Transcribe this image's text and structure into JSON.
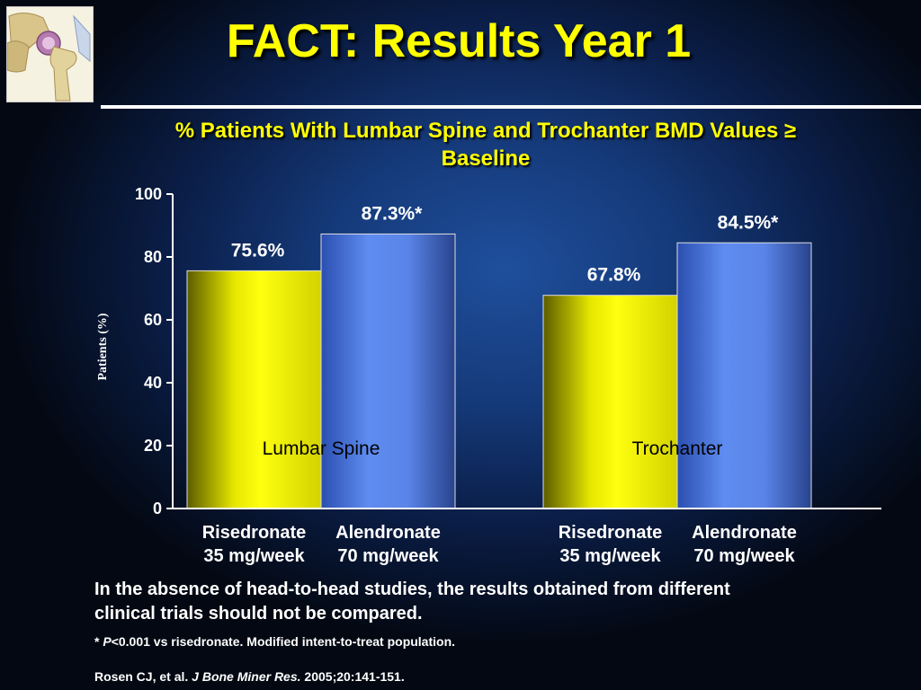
{
  "slide": {
    "title": "FACT: Results Year 1",
    "subtitle_line1": "% Patients With Lumbar Spine and Trochanter BMD Values ≥",
    "subtitle_line2": "Baseline",
    "note_line1": "In the absence of head-to-head studies, the results obtained from different",
    "note_line2": "clinical trials should not be compared.",
    "footnote_star": "* ",
    "footnote_p": "P",
    "footnote_rest": "<0.001 vs risedronate. Modified intent-to-treat population.",
    "ref_authors": "Rosen CJ, et al. ",
    "ref_journal": "J Bone Miner Res.",
    "ref_rest": " 2005;20:141-151."
  },
  "logo": {
    "icon": "hip-joint-icon"
  },
  "chart_data": {
    "type": "bar",
    "ylabel": "Patients (%)",
    "ylim": [
      0,
      100
    ],
    "yticks": [
      0,
      20,
      40,
      60,
      80,
      100
    ],
    "groups": [
      {
        "name": "Lumbar Spine",
        "bars": [
          {
            "label_line1": "Risedronate",
            "label_line2": "35 mg/week",
            "value": 75.6,
            "value_label": "75.6%",
            "color": "#f2f200"
          },
          {
            "label_line1": "Alendronate",
            "label_line2": "70 mg/week",
            "value": 87.3,
            "value_label": "87.3%*",
            "color": "#5a84e8"
          }
        ]
      },
      {
        "name": "Trochanter",
        "bars": [
          {
            "label_line1": "Risedronate",
            "label_line2": "35 mg/week",
            "value": 67.8,
            "value_label": "67.8%",
            "color": "#f2f200"
          },
          {
            "label_line1": "Alendronate",
            "label_line2": "70 mg/week",
            "value": 84.5,
            "value_label": "84.5%*",
            "color": "#5a84e8"
          }
        ]
      }
    ]
  }
}
